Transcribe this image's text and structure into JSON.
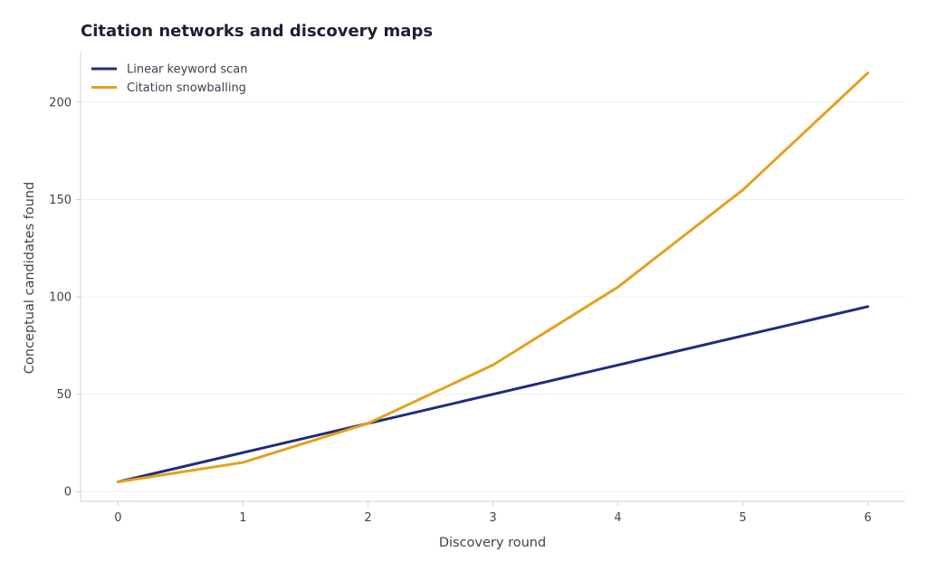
{
  "chart_data": {
    "type": "line",
    "title": "Citation networks and discovery maps",
    "xlabel": "Discovery round",
    "ylabel": "Conceptual candidates found",
    "x": [
      0,
      1,
      2,
      3,
      4,
      5,
      6
    ],
    "xticks": [
      0,
      1,
      2,
      3,
      4,
      5,
      6
    ],
    "yticks": [
      0,
      50,
      100,
      150,
      200
    ],
    "xlim": [
      -0.3,
      6.3
    ],
    "ylim": [
      -5,
      226
    ],
    "grid": "horizontal",
    "legend_position": "top-left",
    "series": [
      {
        "name": "Linear keyword scan",
        "color": "#1f2d7a",
        "values": [
          5,
          20,
          35,
          50,
          65,
          80,
          95
        ]
      },
      {
        "name": "Citation snowballing",
        "color": "#e5a11c",
        "values": [
          5,
          15,
          35,
          65,
          105,
          155,
          215
        ]
      }
    ]
  }
}
